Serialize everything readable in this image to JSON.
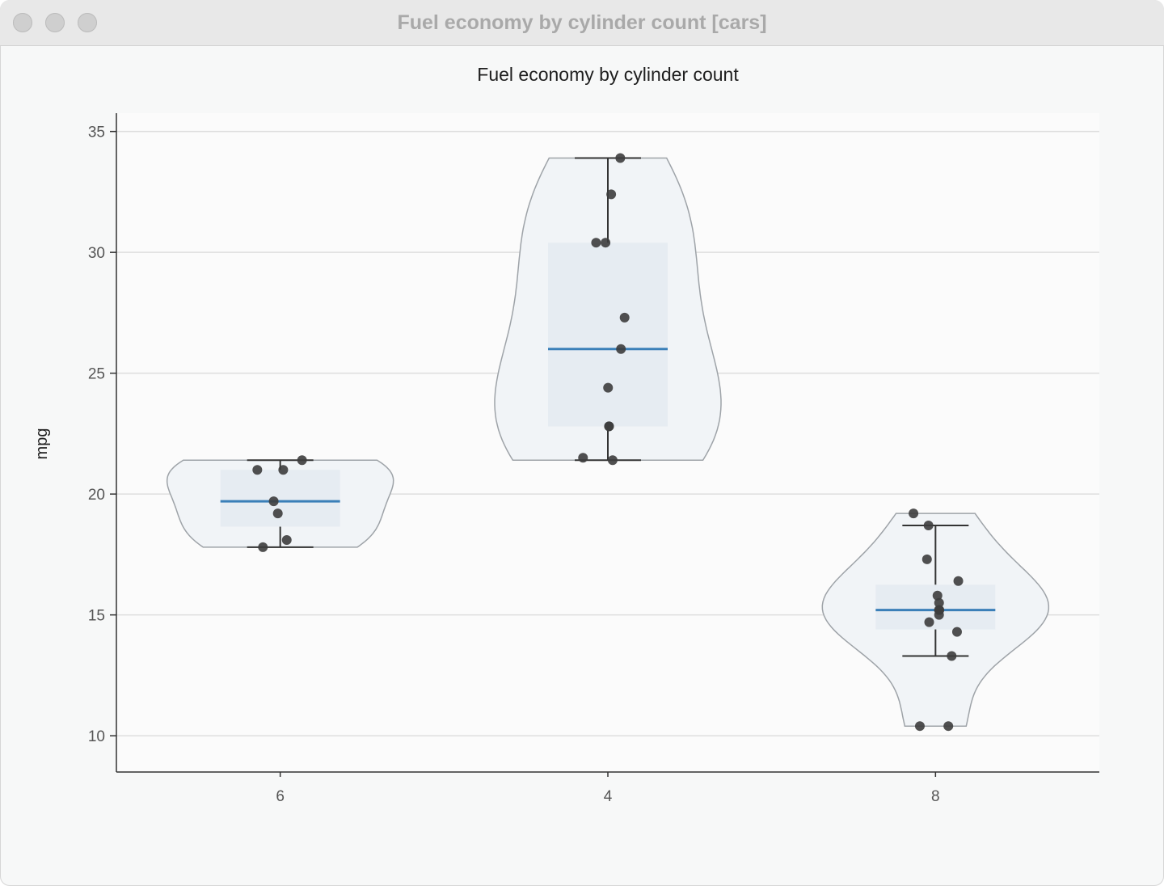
{
  "window": {
    "title": "Fuel economy by cylinder count [cars]"
  },
  "colors": {
    "median": "#3a7fb8",
    "point": "#3d3d3d",
    "violin_fill": "#f1f4f7",
    "violin_stroke": "#9ea3a8",
    "box_fill": "#e6ecf2",
    "grid": "#dedede",
    "axis": "#333333"
  },
  "chart_data": {
    "type": "violin",
    "title": "Fuel economy by cylinder count",
    "xlabel": "",
    "ylabel": "mpg",
    "ylim": [
      8.5,
      35.8
    ],
    "yticks": [
      10,
      15,
      20,
      25,
      30,
      35
    ],
    "grid": true,
    "categories": [
      "6",
      "4",
      "8"
    ],
    "groups": [
      {
        "category": "6",
        "box": {
          "whisker_low": 17.8,
          "q1": 18.65,
          "median": 19.7,
          "q3": 21.0,
          "whisker_high": 21.4
        },
        "points": [
          21.4,
          21.0,
          21.0,
          19.7,
          19.2,
          18.1,
          17.8
        ]
      },
      {
        "category": "4",
        "box": {
          "whisker_low": 21.4,
          "q1": 22.8,
          "median": 26.0,
          "q3": 30.4,
          "whisker_high": 33.9
        },
        "points": [
          33.9,
          32.4,
          30.4,
          30.4,
          27.3,
          26.0,
          24.4,
          22.8,
          22.8,
          21.5,
          21.4
        ]
      },
      {
        "category": "8",
        "box": {
          "whisker_low": 13.3,
          "q1": 14.4,
          "median": 15.2,
          "q3": 16.25,
          "whisker_high": 18.7
        },
        "points": [
          19.2,
          18.7,
          17.3,
          16.4,
          15.8,
          15.5,
          15.2,
          15.2,
          15.0,
          14.7,
          14.3,
          13.3,
          10.4,
          10.4
        ]
      }
    ]
  }
}
